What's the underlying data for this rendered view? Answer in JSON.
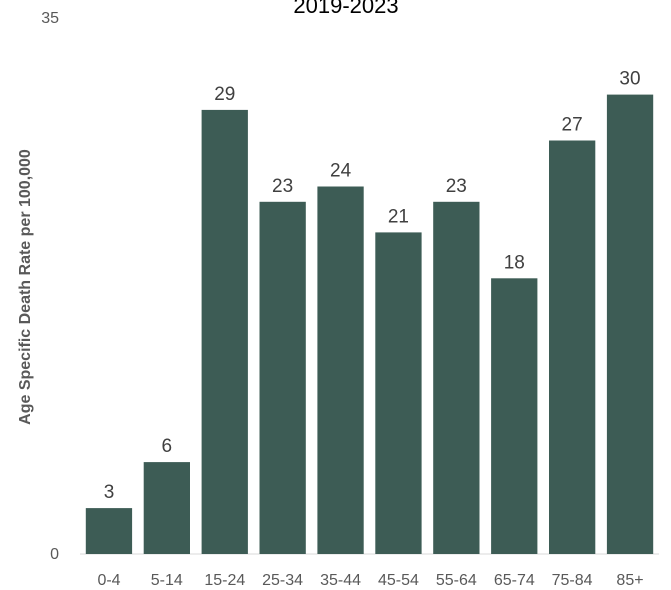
{
  "chart_data": {
    "type": "bar",
    "title": "2019-2023",
    "xlabel": "",
    "ylabel": "Age Specific Death Rate per 100,000",
    "categories": [
      "0-4",
      "5-14",
      "15-24",
      "25-34",
      "35-44",
      "45-54",
      "55-64",
      "65-74",
      "75-84",
      "85+"
    ],
    "values": [
      3,
      6,
      29,
      23,
      24,
      21,
      23,
      18,
      27,
      30
    ],
    "ylim": [
      0,
      35
    ],
    "yticks": [
      "0",
      "35"
    ],
    "bar_color": "#3d5c55",
    "grid": false,
    "legend": "none"
  }
}
